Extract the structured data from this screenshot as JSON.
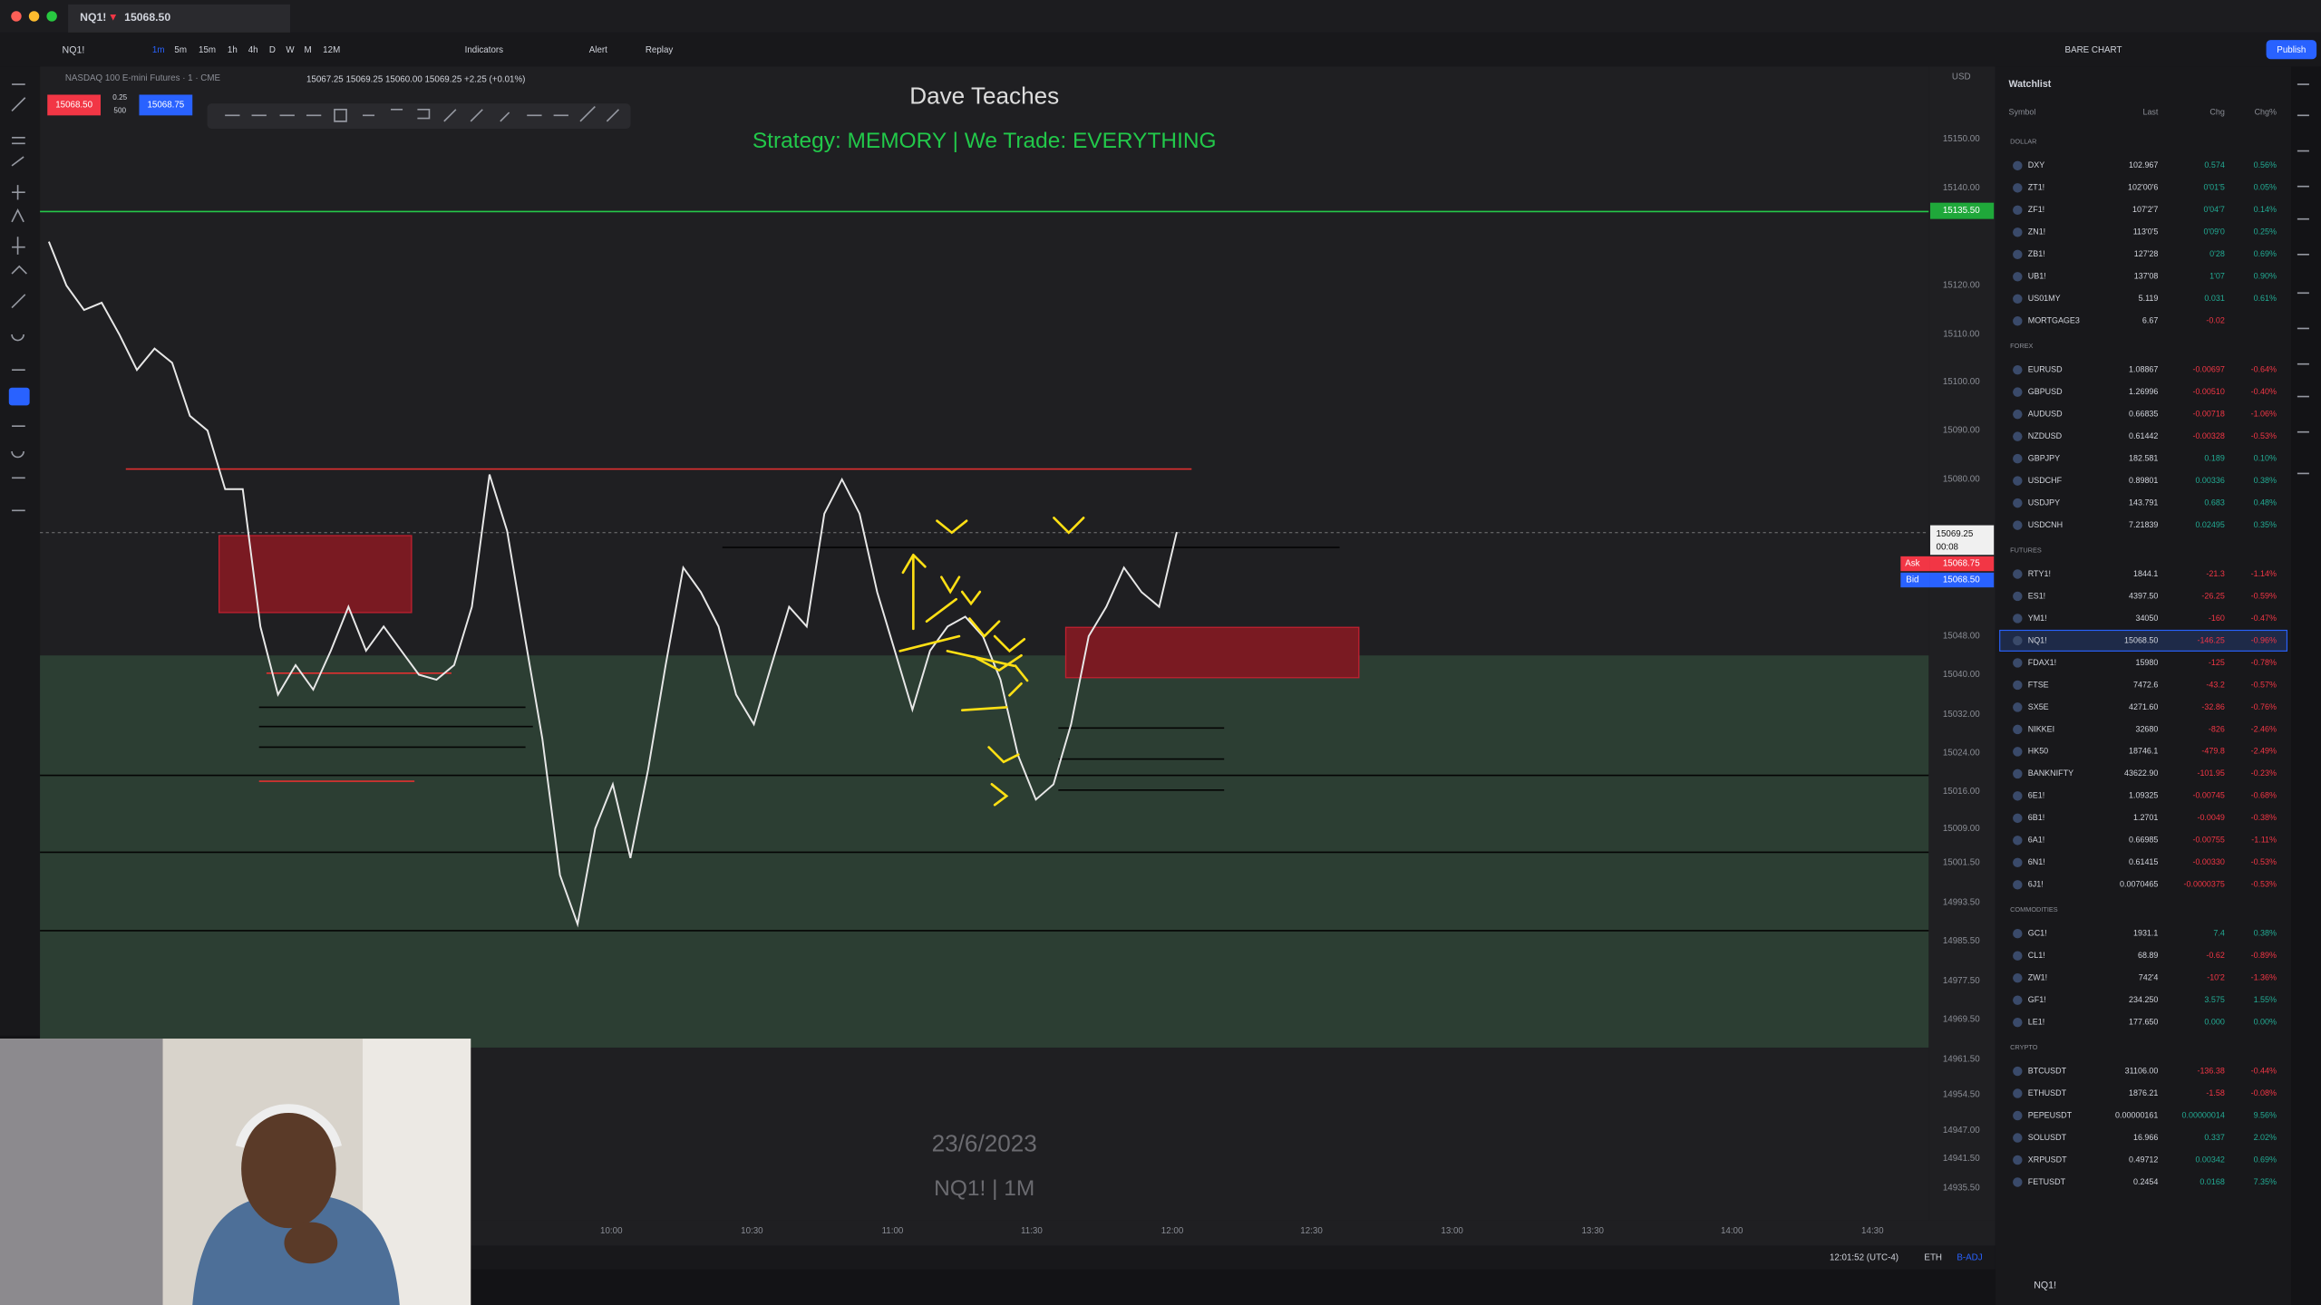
{
  "tab": {
    "symbol": "NQ1!",
    "price": "15068.50"
  },
  "toolbar": {
    "symbol": "NQ1!",
    "intervals": [
      "1m",
      "5m",
      "15m",
      "1h",
      "4h",
      "D",
      "W",
      "M",
      "12M"
    ],
    "indicators": "Indicators",
    "alert": "Alert",
    "replay": "Replay",
    "layout": "BARE CHART",
    "publish": "Publish"
  },
  "chart": {
    "legend": "NASDAQ 100 E-mini Futures · 1 · CME",
    "ohlc": "15067.25  15069.25  15060.00  15069.25  +2.25 (+0.01%)",
    "sell": "15068.50",
    "spread": "0.25",
    "qty": "500",
    "buy": "15068.75",
    "title": "Dave Teaches",
    "subtitle": "Strategy: MEMORY  | We Trade: EVERYTHING",
    "date": "23/6/2023",
    "footer": "NQ1! | 1M",
    "axis_currency": "USD",
    "price_labels": [
      "15150.00",
      "15140.00",
      "15120.00",
      "15110.00",
      "15100.00",
      "15090.00",
      "15080.00",
      "15048.00",
      "15040.00",
      "15032.00",
      "15024.00",
      "15016.00",
      "15009.00",
      "15001.50",
      "14993.50",
      "14985.50",
      "14977.50",
      "14969.50",
      "14961.50",
      "14954.50",
      "14947.00",
      "14941.50",
      "14935.50"
    ],
    "time_labels": [
      "10:00",
      "10:30",
      "11:00",
      "11:30",
      "12:00",
      "12:30",
      "13:00",
      "13:30",
      "14:00",
      "14:30"
    ],
    "level_label": "15135.50",
    "last_price": "15069.25",
    "countdown": "00:08",
    "ask_label": "Ask",
    "ask": "15068.75",
    "bid_label": "Bid",
    "bid": "15068.50",
    "prices": [
      15129,
      15120,
      15115,
      15116.5,
      15110,
      15102.5,
      15107,
      15104,
      15093,
      15090,
      15078,
      15078,
      15050,
      15036,
      15042,
      15037,
      15045,
      15054,
      15045,
      15050,
      15045,
      15040,
      15039,
      15042,
      15054,
      15081,
      15069.5,
      15048,
      15027,
      14999,
      14989,
      15009,
      15017.5,
      15002.5,
      15020.5,
      15042,
      15062,
      15057,
      15050,
      15036,
      15030,
      15042,
      15054,
      15050,
      15073,
      15080,
      15073,
      15057,
      15045,
      15033,
      15045,
      15050,
      15052,
      15048,
      15039,
      15023.5,
      15014.5,
      15017.5,
      15030,
      15048,
      15054,
      15062,
      15057,
      15054,
      15069.25
    ]
  },
  "status": {
    "clock": "12:01:52 (UTC-4)",
    "session": "ETH",
    "adj": "B-ADJ"
  },
  "watchlist": {
    "title": "Watchlist",
    "columns": [
      "Symbol",
      "Last",
      "Chg",
      "Chg%"
    ],
    "sections": [
      {
        "title": "DOLLAR",
        "rows": [
          [
            "DXY",
            "102.967",
            "0.574",
            "0.56%"
          ],
          [
            "ZT1!",
            "102'00'6",
            "0'01'5",
            "0.05%"
          ],
          [
            "ZF1!",
            "107'2'7",
            "0'04'7",
            "0.14%"
          ],
          [
            "ZN1!",
            "113'0'5",
            "0'09'0",
            "0.25%"
          ],
          [
            "ZB1!",
            "127'28",
            "0'28",
            "0.69%"
          ],
          [
            "UB1!",
            "137'08",
            "1'07",
            "0.90%"
          ],
          [
            "US01MY",
            "5.119",
            "0.031",
            "0.61%"
          ],
          [
            "MORTGAGE3",
            "6.67",
            "-0.02"
          ]
        ]
      },
      {
        "title": "FOREX",
        "rows": [
          [
            "EURUSD",
            "1.08867",
            "-0.00697",
            "-0.64%"
          ],
          [
            "GBPUSD",
            "1.26996",
            "-0.00510",
            "-0.40%"
          ],
          [
            "AUDUSD",
            "0.66835",
            "-0.00718",
            "-1.06%"
          ],
          [
            "NZDUSD",
            "0.61442",
            "-0.00328",
            "-0.53%"
          ],
          [
            "GBPJPY",
            "182.581",
            "0.189",
            "0.10%"
          ],
          [
            "USDCHF",
            "0.89801",
            "0.00336",
            "0.38%"
          ],
          [
            "USDJPY",
            "143.791",
            "0.683",
            "0.48%"
          ],
          [
            "USDCNH",
            "7.21839",
            "0.02495",
            "0.35%"
          ]
        ]
      },
      {
        "title": "FUTURES",
        "rows": [
          [
            "RTY1!",
            "1844.1",
            "-21.3",
            "-1.14%"
          ],
          [
            "ES1!",
            "4397.50",
            "-26.25",
            "-0.59%"
          ],
          [
            "YM1!",
            "34050",
            "-160",
            "-0.47%"
          ],
          [
            "NQ1!",
            "15068.50",
            "-146.25",
            "-0.96%"
          ],
          [
            "FDAX1!",
            "15980",
            "-125",
            "-0.78%"
          ],
          [
            "FTSE",
            "7472.6",
            "-43.2",
            "-0.57%"
          ],
          [
            "SX5E",
            "4271.60",
            "-32.86",
            "-0.76%"
          ],
          [
            "NIKKEI",
            "32680",
            "-826",
            "-2.46%"
          ],
          [
            "HK50",
            "18746.1",
            "-479.8",
            "-2.49%"
          ],
          [
            "BANKNIFTY",
            "43622.90",
            "-101.95",
            "-0.23%"
          ],
          [
            "6E1!",
            "1.09325",
            "-0.00745",
            "-0.68%"
          ],
          [
            "6B1!",
            "1.2701",
            "-0.0049",
            "-0.38%"
          ],
          [
            "6A1!",
            "0.66985",
            "-0.00755",
            "-1.11%"
          ],
          [
            "6N1!",
            "0.61415",
            "-0.00330",
            "-0.53%"
          ],
          [
            "6J1!",
            "0.0070465",
            "-0.0000375",
            "-0.53%"
          ]
        ]
      },
      {
        "title": "COMMODITIES",
        "rows": [
          [
            "GC1!",
            "1931.1",
            "7.4",
            "0.38%"
          ],
          [
            "CL1!",
            "68.89",
            "-0.62",
            "-0.89%"
          ],
          [
            "ZW1!",
            "742'4",
            "-10'2",
            "-1.36%"
          ],
          [
            "GF1!",
            "234.250",
            "3.575",
            "1.55%"
          ],
          [
            "LE1!",
            "177.650",
            "0.000",
            "0.00%"
          ]
        ]
      },
      {
        "title": "CRYPTO",
        "rows": [
          [
            "BTCUSDT",
            "31106.00",
            "-136.38",
            "-0.44%"
          ],
          [
            "ETHUSDT",
            "1876.21",
            "-1.58",
            "-0.08%"
          ],
          [
            "PEPEUSDT",
            "0.00000161",
            "0.00000014",
            "9.56%"
          ],
          [
            "SOLUSDT",
            "16.966",
            "0.337",
            "2.02%"
          ],
          [
            "XRPUSDT",
            "0.49712",
            "0.00342",
            "0.69%"
          ],
          [
            "FETUSDT",
            "0.2454",
            "0.0168",
            "7.35%"
          ]
        ]
      }
    ]
  },
  "footer_symbol": "NQ1!"
}
